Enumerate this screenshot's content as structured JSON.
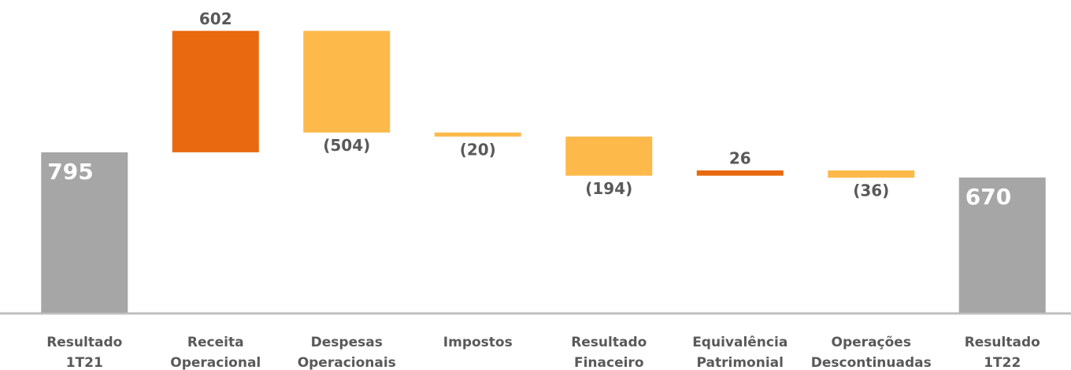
{
  "chart_data": {
    "type": "waterfall",
    "categories": [
      [
        "Resultado",
        "1T21"
      ],
      [
        "Receita",
        "Operacional"
      ],
      [
        "Despesas",
        "Operacionais"
      ],
      [
        "Impostos"
      ],
      [
        "Resultado",
        "Finaceiro"
      ],
      [
        "Equivalência",
        "Patrimonial"
      ],
      [
        "Operações",
        "Descontinuadas"
      ],
      [
        "Resultado",
        "1T22"
      ]
    ],
    "values": [
      795,
      602,
      -504,
      -20,
      -194,
      26,
      -36,
      670
    ],
    "value_labels": [
      "795",
      "602",
      "(504)",
      "(20)",
      "(194)",
      "26",
      "(36)",
      "670"
    ],
    "measures": [
      "total",
      "relative",
      "relative",
      "relative",
      "relative",
      "relative",
      "relative",
      "total"
    ],
    "colors": {
      "total": "#a6a6a6",
      "increase": "#e8690f",
      "decrease": "#fdb94a"
    },
    "ylim": [
      0,
      1550
    ]
  }
}
